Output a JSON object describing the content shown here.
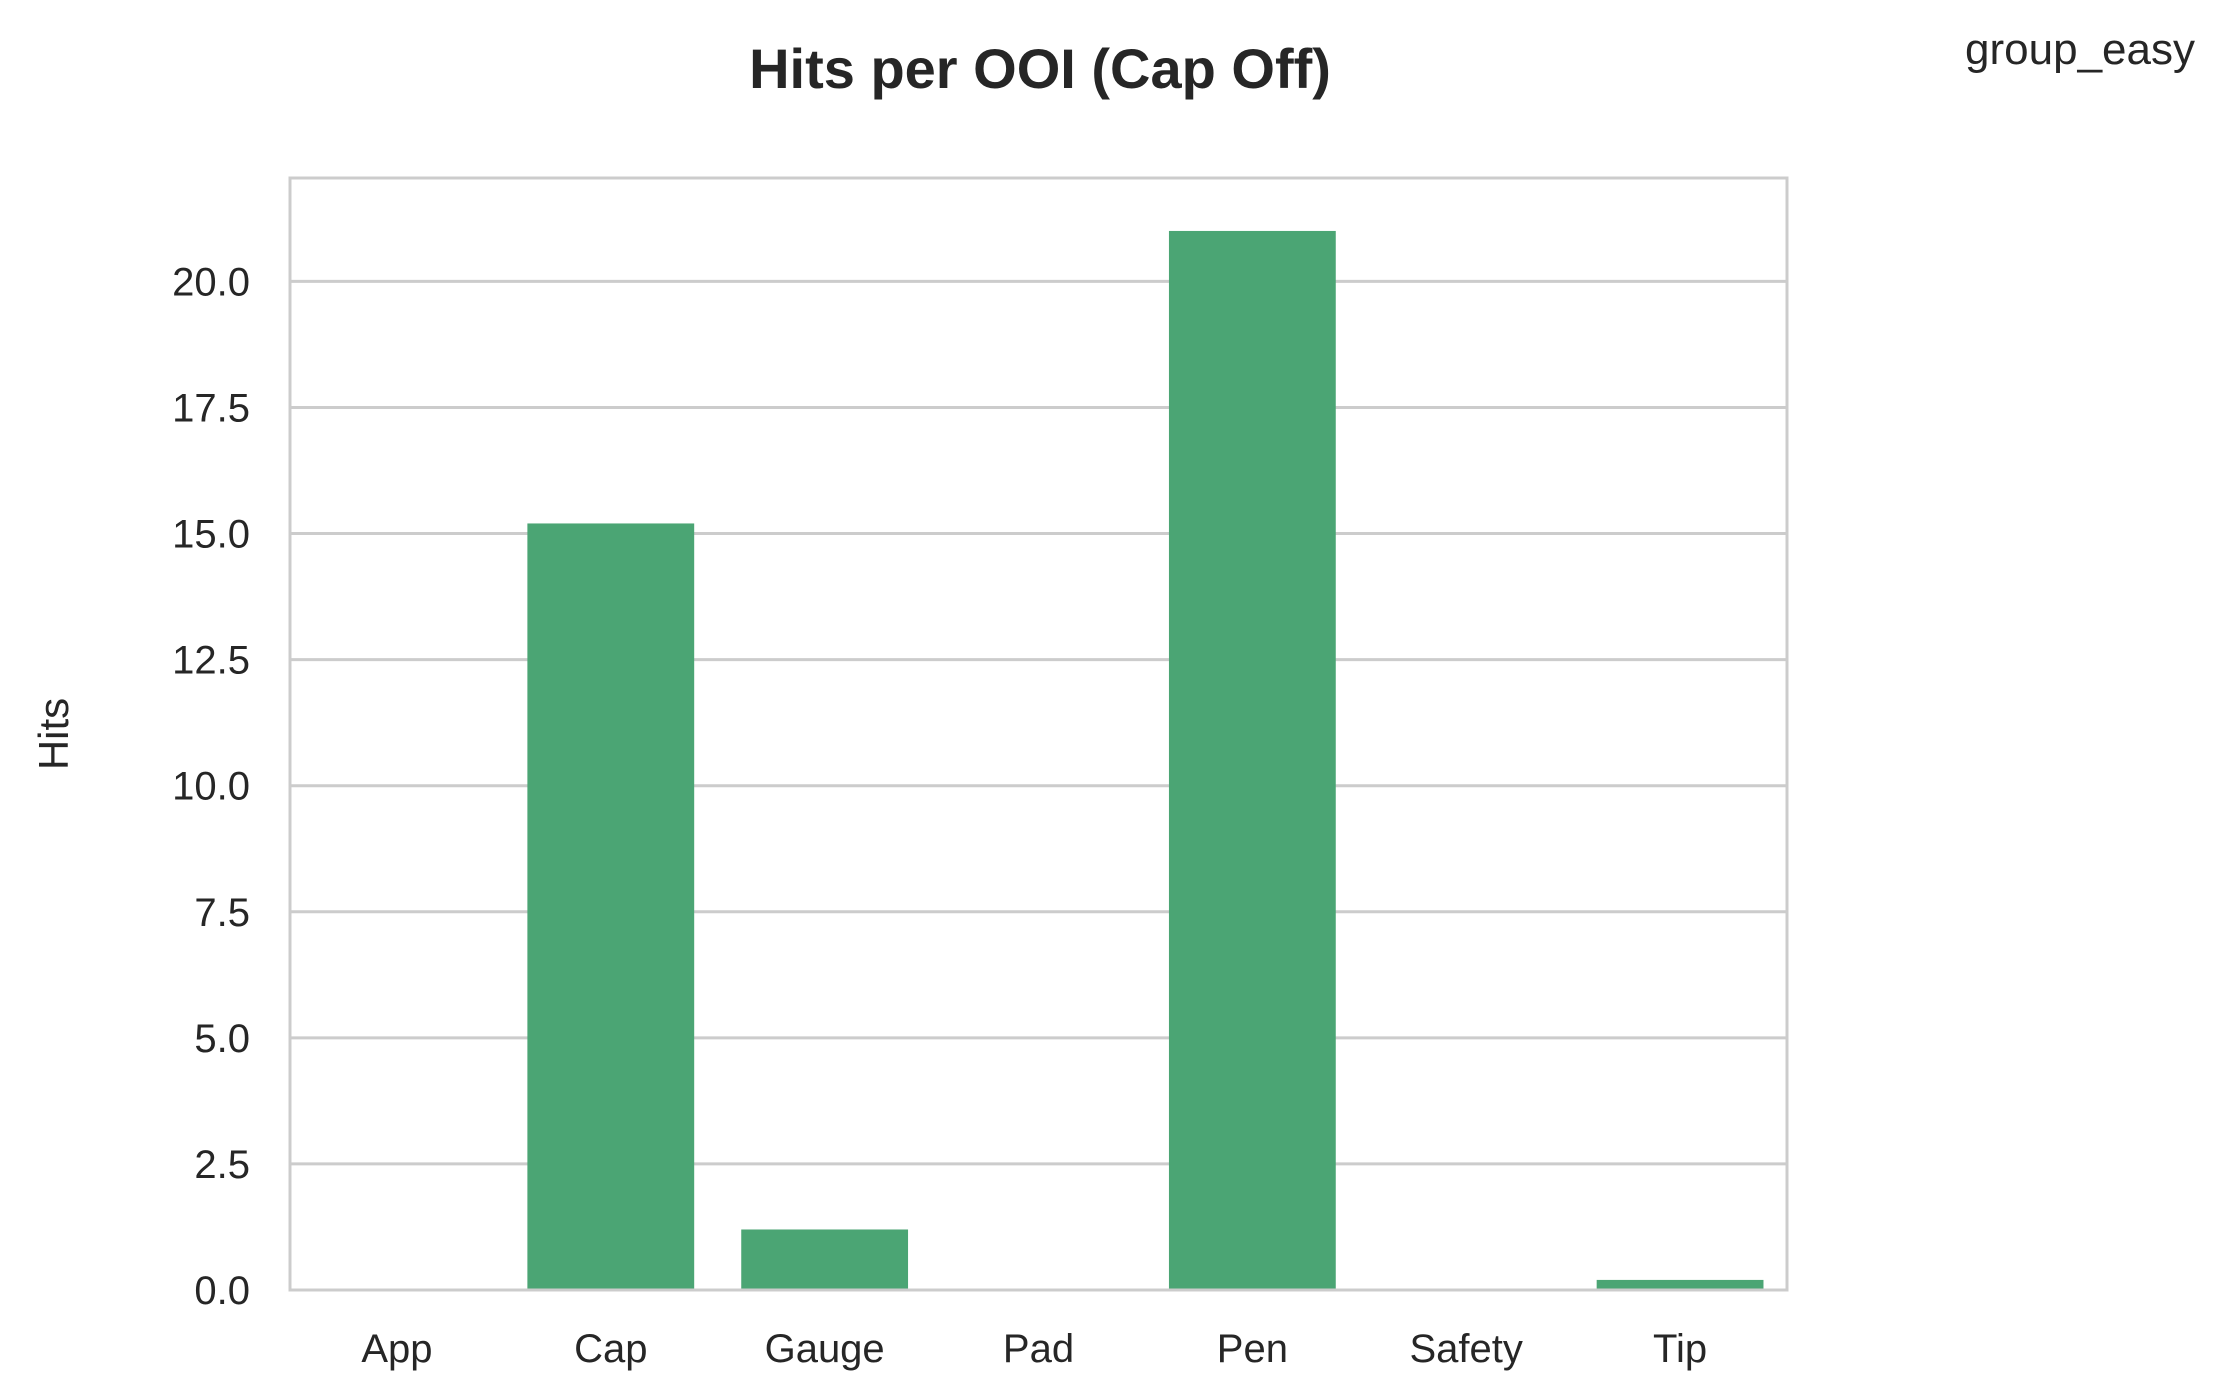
{
  "chart_data": {
    "type": "bar",
    "title": "Hits per OOI (Cap Off)",
    "annotation": "group_easy",
    "xlabel": "",
    "ylabel": "Hits",
    "categories": [
      "App",
      "Cap",
      "Gauge",
      "Pad",
      "Pen",
      "Safety",
      "Tip"
    ],
    "values": [
      0,
      15.2,
      1.2,
      0,
      21.0,
      0,
      0.2
    ],
    "ylim": [
      0,
      22.05
    ],
    "yticks": [
      0.0,
      2.5,
      5.0,
      7.5,
      10.0,
      12.5,
      15.0,
      17.5,
      20.0
    ],
    "ytick_labels": [
      "0.0",
      "2.5",
      "5.0",
      "7.5",
      "10.0",
      "12.5",
      "15.0",
      "17.5",
      "20.0"
    ],
    "grid": "horizontal",
    "legend": "none",
    "colors": {
      "bar": "#4ba574",
      "grid": "#cccccc",
      "frame": "#cccccc",
      "text": "#262626"
    }
  }
}
